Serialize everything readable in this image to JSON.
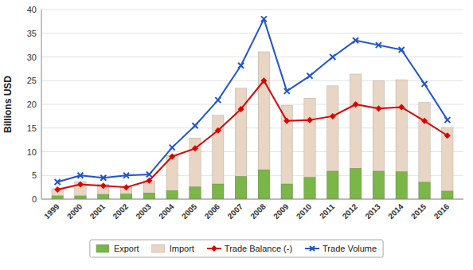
{
  "chart_data": {
    "type": "bar",
    "categories": [
      "1999",
      "2000",
      "2001",
      "2002",
      "2003",
      "2004",
      "2005",
      "2006",
      "2007",
      "2008",
      "2009",
      "2010",
      "2011",
      "2012",
      "2013",
      "2014",
      "2015",
      "2016"
    ],
    "series": [
      {
        "name": "Export",
        "type": "bar",
        "color": "#7ab648",
        "values": [
          0.7,
          0.7,
          1.0,
          1.1,
          1.3,
          1.8,
          2.6,
          3.2,
          4.8,
          6.2,
          3.2,
          4.6,
          5.9,
          6.5,
          5.9,
          5.8,
          3.6,
          1.7
        ]
      },
      {
        "name": "Import",
        "type": "bar",
        "color": "#e8d5c4",
        "values": [
          2.2,
          3.7,
          3.1,
          2.7,
          3.9,
          9.2,
          12.9,
          17.7,
          23.4,
          31.1,
          19.8,
          21.3,
          23.9,
          26.4,
          25.0,
          25.2,
          20.4,
          15.1
        ]
      },
      {
        "name": "Trade Balance (-)",
        "type": "line",
        "color": "#dd0000",
        "marker": "diamond",
        "values": [
          2.0,
          3.1,
          2.8,
          2.5,
          3.9,
          9.0,
          10.7,
          14.5,
          19.0,
          25.0,
          16.5,
          16.7,
          17.5,
          20.0,
          19.1,
          19.4,
          16.5,
          13.4
        ]
      },
      {
        "name": "Trade Volume",
        "type": "line",
        "color": "#2255cc",
        "marker": "x",
        "values": [
          3.6,
          5.0,
          4.5,
          5.0,
          5.2,
          10.9,
          15.5,
          20.9,
          28.2,
          38.0,
          22.8,
          26.0,
          30.0,
          33.5,
          32.5,
          31.5,
          24.3,
          16.7
        ]
      }
    ],
    "y_label": "Billions USD",
    "ylim": [
      0,
      40
    ],
    "yticks": [
      0,
      5,
      10,
      15,
      20,
      25,
      30,
      35,
      40
    ],
    "grid": true,
    "stacked": false,
    "legend": "bottom"
  }
}
